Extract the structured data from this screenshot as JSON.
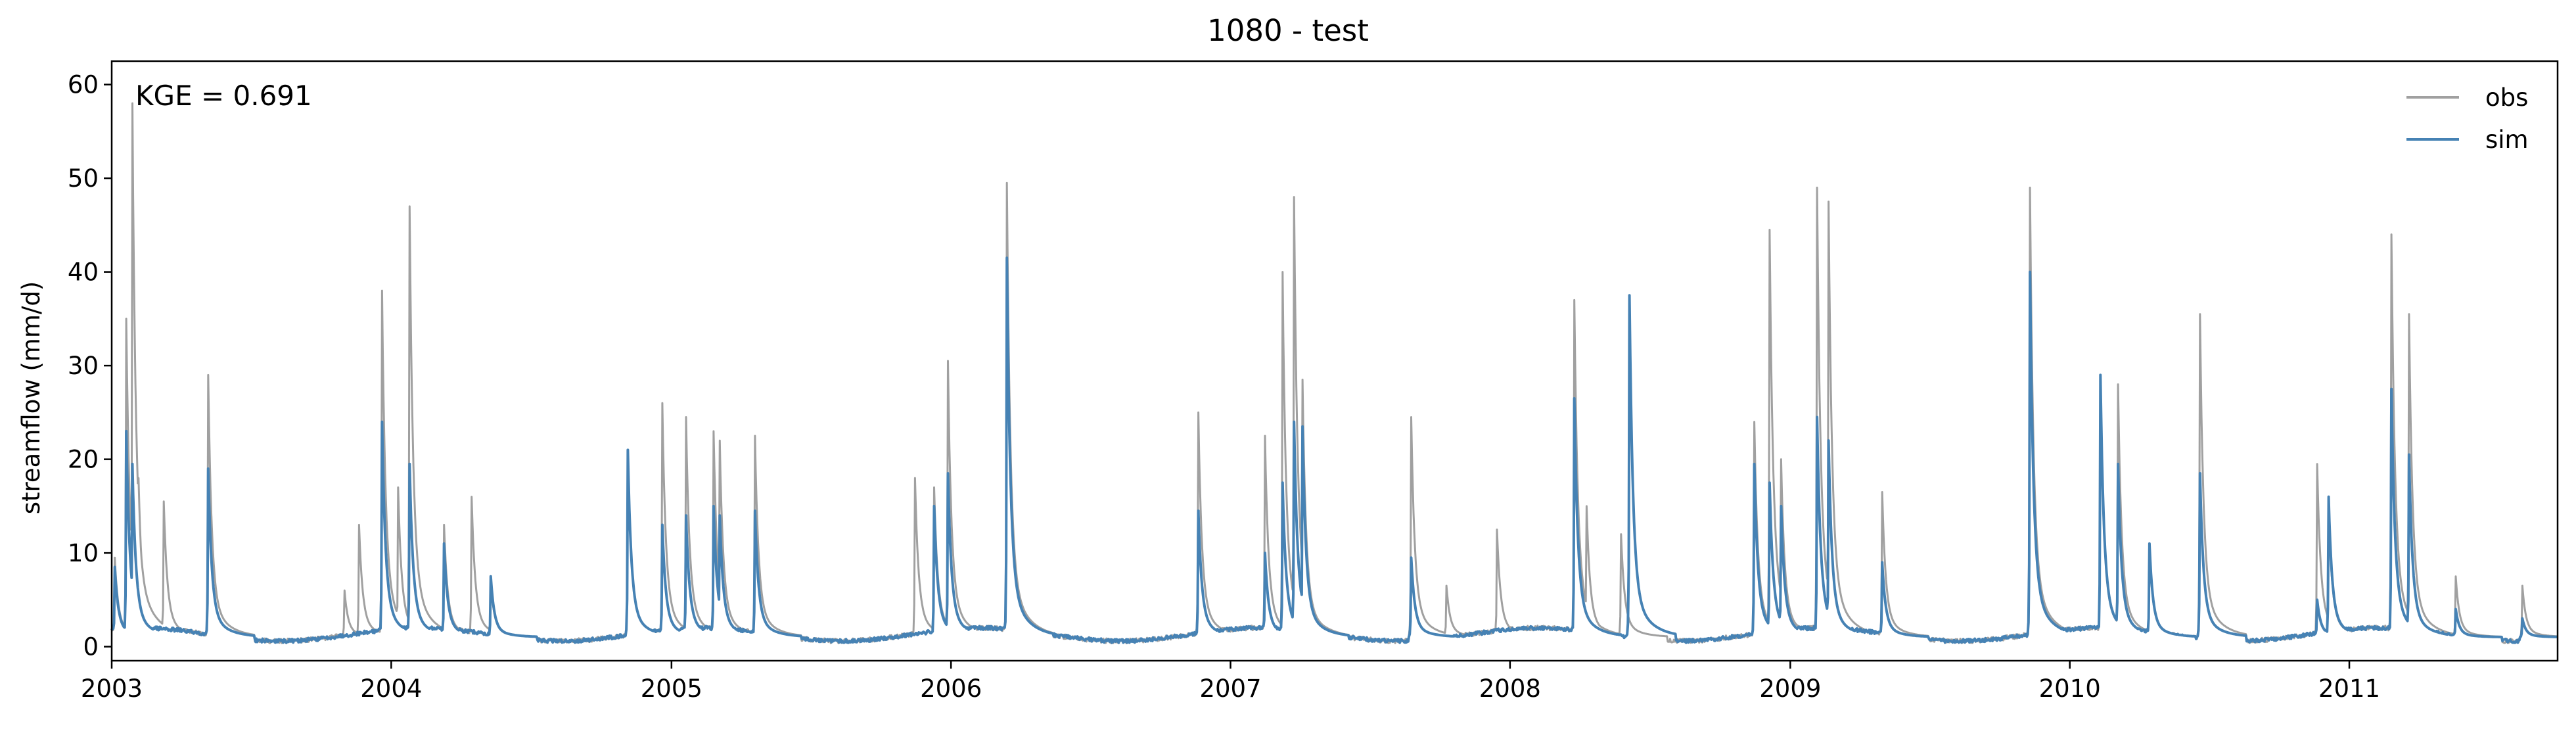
{
  "chart_data": {
    "type": "line",
    "title": "1080 - test",
    "xlabel": "",
    "ylabel": "streamflow (mm/d)",
    "x_range": [
      "2003-01-01",
      "2011-09-30"
    ],
    "x_ticks": [
      "2003",
      "2004",
      "2005",
      "2006",
      "2007",
      "2008",
      "2009",
      "2010",
      "2011"
    ],
    "ylim": [
      -1.5,
      62.5
    ],
    "y_ticks": [
      0,
      10,
      20,
      30,
      40,
      50,
      60
    ],
    "grid": false,
    "legend_position": "top-right",
    "annotation": "KGE = 0.691",
    "baseflow": 1.0,
    "series": [
      {
        "name": "obs",
        "color": "#a0a0a0",
        "peaks": [
          [
            "2003-01-05",
            9.5
          ],
          [
            "2003-01-20",
            35.0
          ],
          [
            "2003-01-28",
            58.0
          ],
          [
            "2003-02-05",
            18.0
          ],
          [
            "2003-03-10",
            15.5
          ],
          [
            "2003-05-07",
            29.0
          ],
          [
            "2003-11-01",
            6.0
          ],
          [
            "2003-11-20",
            13.0
          ],
          [
            "2003-12-20",
            38.0
          ],
          [
            "2004-01-10",
            17.0
          ],
          [
            "2004-01-25",
            47.0
          ],
          [
            "2004-03-10",
            13.0
          ],
          [
            "2004-04-15",
            16.0
          ],
          [
            "2004-05-10",
            7.0
          ],
          [
            "2004-11-05",
            20.5
          ],
          [
            "2004-12-20",
            26.0
          ],
          [
            "2005-01-20",
            24.5
          ],
          [
            "2005-02-25",
            23.0
          ],
          [
            "2005-03-05",
            22.0
          ],
          [
            "2005-04-20",
            22.5
          ],
          [
            "2005-11-15",
            18.0
          ],
          [
            "2005-12-10",
            17.0
          ],
          [
            "2005-12-28",
            30.5
          ],
          [
            "2006-03-15",
            49.5
          ],
          [
            "2006-11-20",
            25.0
          ],
          [
            "2007-02-15",
            22.5
          ],
          [
            "2007-03-10",
            40.0
          ],
          [
            "2007-03-25",
            48.0
          ],
          [
            "2007-04-05",
            28.5
          ],
          [
            "2007-08-25",
            24.5
          ],
          [
            "2007-10-10",
            6.5
          ],
          [
            "2007-12-15",
            12.5
          ],
          [
            "2008-03-25",
            37.0
          ],
          [
            "2008-04-10",
            15.0
          ],
          [
            "2008-05-25",
            12.0
          ],
          [
            "2008-11-15",
            24.0
          ],
          [
            "2008-12-05",
            44.5
          ],
          [
            "2008-12-20",
            20.0
          ],
          [
            "2009-02-05",
            49.0
          ],
          [
            "2009-02-20",
            47.5
          ],
          [
            "2009-05-01",
            16.5
          ],
          [
            "2009-11-10",
            49.0
          ],
          [
            "2010-02-10",
            28.0
          ],
          [
            "2010-03-05",
            28.0
          ],
          [
            "2010-04-15",
            10.5
          ],
          [
            "2010-06-20",
            35.5
          ],
          [
            "2010-11-20",
            19.5
          ],
          [
            "2010-12-05",
            15.0
          ],
          [
            "2011-02-25",
            44.0
          ],
          [
            "2011-03-20",
            35.5
          ],
          [
            "2011-05-20",
            7.5
          ],
          [
            "2011-08-15",
            6.5
          ]
        ]
      },
      {
        "name": "sim",
        "color": "#4682b4",
        "peaks": [
          [
            "2003-01-05",
            8.5
          ],
          [
            "2003-01-20",
            23.0
          ],
          [
            "2003-01-28",
            19.5
          ],
          [
            "2003-05-07",
            19.0
          ],
          [
            "2003-12-20",
            24.0
          ],
          [
            "2004-01-25",
            19.5
          ],
          [
            "2004-03-10",
            11.0
          ],
          [
            "2004-05-10",
            7.5
          ],
          [
            "2004-11-05",
            21.0
          ],
          [
            "2004-12-20",
            13.0
          ],
          [
            "2005-01-20",
            14.0
          ],
          [
            "2005-02-25",
            15.0
          ],
          [
            "2005-03-05",
            14.0
          ],
          [
            "2005-04-20",
            14.5
          ],
          [
            "2005-12-10",
            15.0
          ],
          [
            "2005-12-28",
            18.5
          ],
          [
            "2006-03-15",
            41.5
          ],
          [
            "2006-11-20",
            14.5
          ],
          [
            "2007-02-15",
            10.0
          ],
          [
            "2007-03-10",
            17.5
          ],
          [
            "2007-03-25",
            24.0
          ],
          [
            "2007-04-05",
            23.5
          ],
          [
            "2007-08-25",
            9.5
          ],
          [
            "2008-03-25",
            26.5
          ],
          [
            "2008-06-05",
            37.5
          ],
          [
            "2008-11-15",
            19.5
          ],
          [
            "2008-12-05",
            17.5
          ],
          [
            "2008-12-20",
            15.0
          ],
          [
            "2009-02-05",
            24.5
          ],
          [
            "2009-02-20",
            22.0
          ],
          [
            "2009-05-01",
            9.0
          ],
          [
            "2009-11-10",
            40.0
          ],
          [
            "2010-02-10",
            29.0
          ],
          [
            "2010-03-05",
            19.5
          ],
          [
            "2010-04-15",
            11.0
          ],
          [
            "2010-06-20",
            18.5
          ],
          [
            "2010-11-20",
            5.0
          ],
          [
            "2010-12-05",
            16.0
          ],
          [
            "2011-02-25",
            27.5
          ],
          [
            "2011-03-20",
            20.5
          ],
          [
            "2011-05-20",
            4.0
          ],
          [
            "2011-08-15",
            3.0
          ]
        ]
      }
    ]
  }
}
